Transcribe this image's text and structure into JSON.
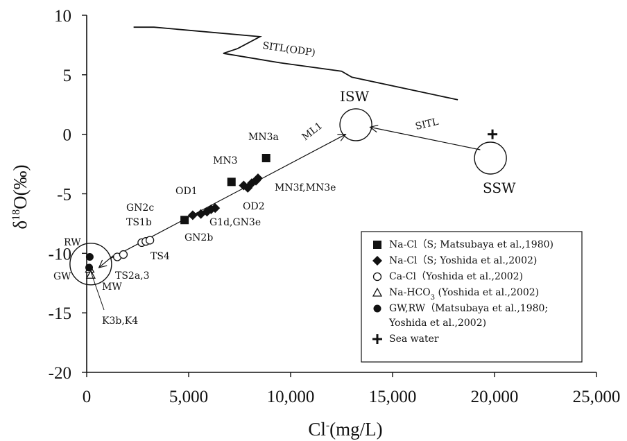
{
  "chart_data": {
    "type": "scatter",
    "xlabel": "Cl",
    "xlabel_sup": "-",
    "xlabel_unit": "(mg/L)",
    "ylabel_pre": "δ",
    "ylabel_sup": "18",
    "ylabel_post": "O(‰)",
    "xlim": [
      0,
      25000
    ],
    "ylim": [
      -20,
      10
    ],
    "x_ticks": [
      0,
      5000,
      10000,
      15000,
      20000,
      25000
    ],
    "x_tick_labels": [
      "0",
      "5,000",
      "10,000",
      "15,000",
      "20,000",
      "25,000"
    ],
    "y_ticks": [
      -20,
      -15,
      -10,
      -5,
      0,
      5,
      10
    ],
    "y_tick_labels": [
      "-20",
      "-15",
      "-10",
      "-5",
      "0",
      "5",
      "10"
    ],
    "legend_position": "bottom-right",
    "series": [
      {
        "name": "Na-Cl（S; Matsubaya et al.,1980)",
        "marker": "square",
        "points": [
          [
            4800,
            -7.2
          ],
          [
            7100,
            -4.0
          ],
          [
            8800,
            -2.0
          ]
        ]
      },
      {
        "name": "Na-Cl（S; Yoshida et al.,2002)",
        "marker": "diamond",
        "points": [
          [
            5200,
            -6.8
          ],
          [
            5600,
            -6.7
          ],
          [
            5900,
            -6.5
          ],
          [
            6100,
            -6.3
          ],
          [
            6300,
            -6.2
          ],
          [
            7700,
            -4.3
          ],
          [
            7900,
            -4.5
          ],
          [
            8100,
            -4.1
          ],
          [
            8300,
            -3.9
          ],
          [
            8400,
            -3.7
          ]
        ]
      },
      {
        "name": "Ca-Cl（Yoshida et al.,2002)",
        "marker": "open-circle",
        "points": [
          [
            1500,
            -10.3
          ],
          [
            1800,
            -10.1
          ],
          [
            2700,
            -9.1
          ],
          [
            2900,
            -9.0
          ],
          [
            3100,
            -8.9
          ]
        ]
      },
      {
        "name": "Na-HCO3 (Yoshida et al.,2002)",
        "marker": "triangle",
        "points": [
          [
            150,
            -11.3
          ],
          [
            200,
            -11.8
          ]
        ]
      },
      {
        "name": "GW,RW (Matsubaya et al.,1980; Yoshida et al.,2002)",
        "marker": "filled-circle",
        "points": [
          [
            150,
            -10.3
          ],
          [
            120,
            -11.2
          ]
        ]
      },
      {
        "name": "Sea water",
        "marker": "plus",
        "points": [
          [
            19900,
            0.0
          ]
        ]
      }
    ],
    "legend": [
      {
        "marker": "square",
        "lines": [
          "Na-Cl（S; Matsubaya et al.,1980)"
        ]
      },
      {
        "marker": "diamond",
        "lines": [
          "Na-Cl（S; Yoshida et al.,2002)"
        ]
      },
      {
        "marker": "open-circle",
        "lines": [
          "Ca-Cl（Yoshida et al.,2002)"
        ]
      },
      {
        "marker": "triangle",
        "lines": [
          "Na-HCO3 (Yoshida et al.,2002)"
        ]
      },
      {
        "marker": "filled-circle",
        "lines": [
          "GW,RW（Matsubaya et al.,1980;",
          "Yoshida et al.,2002)"
        ]
      },
      {
        "marker": "plus",
        "lines": [
          "Sea water"
        ]
      }
    ],
    "sitl_odp_line": [
      [
        2300,
        9.0
      ],
      [
        3300,
        9.0
      ],
      [
        8500,
        8.2
      ],
      [
        7400,
        7.2
      ],
      [
        6700,
        6.8
      ],
      [
        9500,
        6.0
      ],
      [
        12500,
        5.3
      ],
      [
        13000,
        4.8
      ],
      [
        18200,
        2.9
      ]
    ],
    "sitl_odp_label": "SITL(ODP)",
    "circles": [
      {
        "label": "ISW",
        "center": [
          13200,
          0.8
        ]
      },
      {
        "label": "SSW",
        "center": [
          19800,
          -2.0
        ]
      },
      {
        "label": "",
        "center": [
          200,
          -10.9
        ]
      }
    ],
    "arrows": [
      {
        "label": "ML1",
        "from": [
          1200,
          -10.4
        ],
        "to": [
          12700,
          0.0
        ]
      },
      {
        "label": "SITL",
        "from": [
          19300,
          -1.3
        ],
        "to": [
          13900,
          0.6
        ]
      }
    ],
    "sample_labels": [
      "MN3a",
      "MN3",
      "MN3f,MN3e",
      "OD1",
      "OD2",
      "GN2c",
      "TS1b",
      "G1d,GN3e",
      "GN2b",
      "RW",
      "GW",
      "TS4",
      "TS2a,3",
      "MW",
      "K3b,K4"
    ]
  }
}
